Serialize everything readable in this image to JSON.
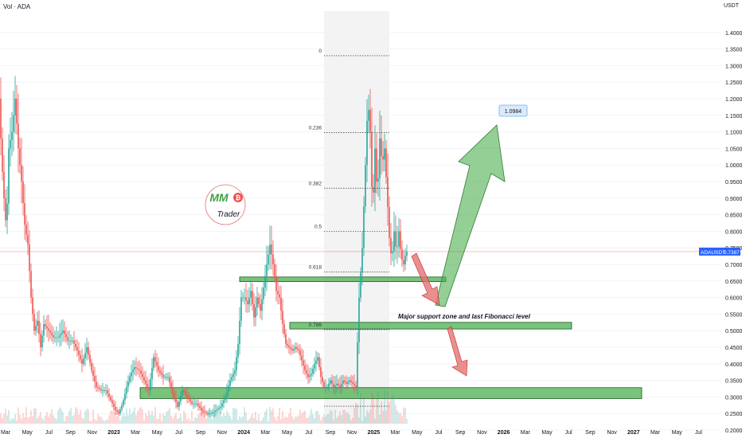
{
  "header": {
    "volume_label": "Vol · ADA",
    "currency": "USDT"
  },
  "chart_data": {
    "type": "candlestick",
    "symbol": "ADAUSDT",
    "last_price": "0.7387",
    "ylim": [
      0.2,
      1.45
    ],
    "y_ticks": [
      "0.2000",
      "0.2500",
      "0.3000",
      "0.3500",
      "0.4000",
      "0.4500",
      "0.5000",
      "0.5500",
      "0.6000",
      "0.6500",
      "0.7000",
      "0.7500",
      "0.8000",
      "0.8500",
      "0.9000",
      "0.9500",
      "1.0000",
      "1.0500",
      "1.1000",
      "1.1500",
      "1.2000",
      "1.2500",
      "1.3000",
      "1.3500",
      "1.4000"
    ],
    "x_ticks": [
      "Mar",
      "May",
      "Jul",
      "Sep",
      "Nov",
      "2023",
      "Mar",
      "May",
      "Jul",
      "Sep",
      "Nov",
      "2024",
      "Mar",
      "May",
      "Jul",
      "Sep",
      "Nov",
      "2025",
      "Mar",
      "May",
      "Jul",
      "Sep",
      "Nov",
      "2026",
      "Mar",
      "May",
      "Jul",
      "Sep",
      "Nov",
      "2027",
      "Mar",
      "May",
      "Jul"
    ],
    "x_tick_bold": [
      "2023",
      "2024",
      "2025",
      "2026",
      "2027"
    ],
    "fib_levels": [
      {
        "label": "0",
        "price": 1.33
      },
      {
        "label": "0.236",
        "price": 1.098
      },
      {
        "label": "0.382",
        "price": 0.93
      },
      {
        "label": "0.5",
        "price": 0.8
      },
      {
        "label": "0.618",
        "price": 0.677
      },
      {
        "label": "0.786",
        "price": 0.503
      }
    ],
    "fib_low": 0.272,
    "zones": [
      {
        "name": "zone-upper",
        "low": 0.648,
        "high": 0.662
      },
      {
        "name": "zone-mid",
        "low": 0.505,
        "high": 0.525
      },
      {
        "name": "zone-lower",
        "low": 0.295,
        "high": 0.328
      }
    ],
    "annotation": "Major support zone and last Fibonacci level",
    "target": "1.0984",
    "price_path": [
      {
        "t": 0,
        "p": 1.2
      },
      {
        "t": 3,
        "p": 1.02
      },
      {
        "t": 6,
        "p": 0.9
      },
      {
        "t": 9,
        "p": 0.8
      },
      {
        "t": 12,
        "p": 1.05
      },
      {
        "t": 16,
        "p": 1.1
      },
      {
        "t": 20,
        "p": 1.2
      },
      {
        "t": 24,
        "p": 1.05
      },
      {
        "t": 28,
        "p": 0.95
      },
      {
        "t": 32,
        "p": 0.82
      },
      {
        "t": 36,
        "p": 0.76
      },
      {
        "t": 40,
        "p": 0.6
      },
      {
        "t": 44,
        "p": 0.5
      },
      {
        "t": 48,
        "p": 0.53
      },
      {
        "t": 52,
        "p": 0.45
      },
      {
        "t": 56,
        "p": 0.52
      },
      {
        "t": 62,
        "p": 0.5
      },
      {
        "t": 68,
        "p": 0.48
      },
      {
        "t": 74,
        "p": 0.48
      },
      {
        "t": 80,
        "p": 0.5
      },
      {
        "t": 86,
        "p": 0.47
      },
      {
        "t": 92,
        "p": 0.47
      },
      {
        "t": 98,
        "p": 0.44
      },
      {
        "t": 104,
        "p": 0.4
      },
      {
        "t": 110,
        "p": 0.45
      },
      {
        "t": 116,
        "p": 0.38
      },
      {
        "t": 122,
        "p": 0.33
      },
      {
        "t": 128,
        "p": 0.32
      },
      {
        "t": 134,
        "p": 0.32
      },
      {
        "t": 140,
        "p": 0.29
      },
      {
        "t": 146,
        "p": 0.26
      },
      {
        "t": 150,
        "p": 0.25
      },
      {
        "t": 155,
        "p": 0.28
      },
      {
        "t": 160,
        "p": 0.33
      },
      {
        "t": 165,
        "p": 0.37
      },
      {
        "t": 170,
        "p": 0.39
      },
      {
        "t": 176,
        "p": 0.38
      },
      {
        "t": 182,
        "p": 0.35
      },
      {
        "t": 188,
        "p": 0.32
      },
      {
        "t": 194,
        "p": 0.42
      },
      {
        "t": 200,
        "p": 0.38
      },
      {
        "t": 206,
        "p": 0.36
      },
      {
        "t": 212,
        "p": 0.36
      },
      {
        "t": 218,
        "p": 0.31
      },
      {
        "t": 224,
        "p": 0.27
      },
      {
        "t": 230,
        "p": 0.32
      },
      {
        "t": 236,
        "p": 0.3
      },
      {
        "t": 242,
        "p": 0.28
      },
      {
        "t": 248,
        "p": 0.28
      },
      {
        "t": 254,
        "p": 0.26
      },
      {
        "t": 260,
        "p": 0.25
      },
      {
        "t": 266,
        "p": 0.25
      },
      {
        "t": 272,
        "p": 0.26
      },
      {
        "t": 278,
        "p": 0.27
      },
      {
        "t": 284,
        "p": 0.3
      },
      {
        "t": 290,
        "p": 0.35
      },
      {
        "t": 296,
        "p": 0.38
      },
      {
        "t": 300,
        "p": 0.46
      },
      {
        "t": 304,
        "p": 0.6
      },
      {
        "t": 308,
        "p": 0.6
      },
      {
        "t": 312,
        "p": 0.58
      },
      {
        "t": 316,
        "p": 0.62
      },
      {
        "t": 320,
        "p": 0.54
      },
      {
        "t": 324,
        "p": 0.6
      },
      {
        "t": 328,
        "p": 0.56
      },
      {
        "t": 332,
        "p": 0.63
      },
      {
        "t": 336,
        "p": 0.7
      },
      {
        "t": 340,
        "p": 0.76
      },
      {
        "t": 344,
        "p": 0.7
      },
      {
        "t": 348,
        "p": 0.62
      },
      {
        "t": 352,
        "p": 0.6
      },
      {
        "t": 356,
        "p": 0.52
      },
      {
        "t": 360,
        "p": 0.46
      },
      {
        "t": 364,
        "p": 0.45
      },
      {
        "t": 368,
        "p": 0.44
      },
      {
        "t": 372,
        "p": 0.45
      },
      {
        "t": 376,
        "p": 0.44
      },
      {
        "t": 380,
        "p": 0.41
      },
      {
        "t": 384,
        "p": 0.38
      },
      {
        "t": 388,
        "p": 0.36
      },
      {
        "t": 392,
        "p": 0.37
      },
      {
        "t": 396,
        "p": 0.4
      },
      {
        "t": 400,
        "p": 0.42
      },
      {
        "t": 404,
        "p": 0.36
      },
      {
        "t": 408,
        "p": 0.33
      },
      {
        "t": 412,
        "p": 0.33
      },
      {
        "t": 416,
        "p": 0.35
      },
      {
        "t": 420,
        "p": 0.33
      },
      {
        "t": 424,
        "p": 0.34
      },
      {
        "t": 428,
        "p": 0.33
      },
      {
        "t": 432,
        "p": 0.35
      },
      {
        "t": 436,
        "p": 0.34
      },
      {
        "t": 440,
        "p": 0.35
      },
      {
        "t": 444,
        "p": 0.34
      },
      {
        "t": 448,
        "p": 0.33
      },
      {
        "t": 452,
        "p": 0.6
      },
      {
        "t": 456,
        "p": 0.75
      },
      {
        "t": 460,
        "p": 1.0
      },
      {
        "t": 463,
        "p": 1.2
      },
      {
        "t": 466,
        "p": 1.1
      },
      {
        "t": 469,
        "p": 0.85
      },
      {
        "t": 472,
        "p": 1.05
      },
      {
        "t": 475,
        "p": 0.9
      },
      {
        "t": 478,
        "p": 1.08
      },
      {
        "t": 481,
        "p": 1.0
      },
      {
        "t": 484,
        "p": 1.05
      },
      {
        "t": 487,
        "p": 0.92
      },
      {
        "t": 490,
        "p": 0.78
      },
      {
        "t": 493,
        "p": 0.71
      },
      {
        "t": 496,
        "p": 0.8
      },
      {
        "t": 499,
        "p": 0.73
      },
      {
        "t": 502,
        "p": 0.8
      },
      {
        "t": 505,
        "p": 0.72
      },
      {
        "t": 508,
        "p": 0.7
      },
      {
        "t": 511,
        "p": 0.7387
      }
    ]
  },
  "branding": {
    "logo_text": "MM",
    "logo_sub": "Trader",
    "currency_symbol": "₿"
  },
  "colors": {
    "up": "#26a69a",
    "down": "#ef5350",
    "zone_fill": "#4caf50",
    "zone_stroke": "#1b5e20",
    "green_arrow": "#4caf50",
    "red_arrow": "#e57373",
    "price_line": "#ef5350",
    "price_tag": "#2962ff"
  }
}
